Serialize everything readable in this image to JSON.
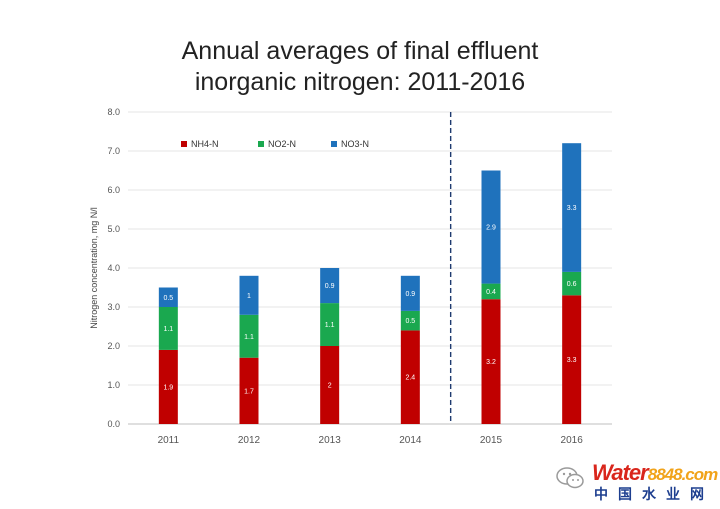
{
  "chart_data": {
    "type": "bar",
    "stacked": true,
    "title_lines": [
      "Annual averages of final effluent",
      "inorganic nitrogen: 2011-2016"
    ],
    "ylabel": "Nitrogen concentration, mg N/l",
    "xlabel": "",
    "ylim": [
      0,
      8
    ],
    "yticks": [
      "0.0",
      "1.0",
      "2.0",
      "3.0",
      "4.0",
      "5.0",
      "6.0",
      "7.0",
      "8.0"
    ],
    "grid": true,
    "legend_position": "top-left",
    "categories": [
      "2011",
      "2012",
      "2013",
      "2014",
      "2015",
      "2016"
    ],
    "divider_after_category": "2014",
    "series": [
      {
        "name": "NH4-N",
        "color": "#c00000",
        "values": [
          1.9,
          1.7,
          2.0,
          2.4,
          3.2,
          3.3
        ],
        "labels": [
          "1.9",
          "1.7",
          "2",
          "2.4",
          "3.2",
          "3.3"
        ]
      },
      {
        "name": "NO2-N",
        "color": "#1aa84f",
        "values": [
          1.1,
          1.1,
          1.1,
          0.5,
          0.4,
          0.6
        ],
        "labels": [
          "1.1",
          "1.1",
          "1.1",
          "0.5",
          "0.4",
          "0.6"
        ]
      },
      {
        "name": "NO3-N",
        "color": "#1f72bc",
        "values": [
          0.5,
          1.0,
          0.9,
          0.9,
          2.9,
          3.3
        ],
        "labels": [
          "0.5",
          "1",
          "0.9",
          "0.9",
          "2.9",
          "3.3"
        ]
      }
    ]
  },
  "watermark": {
    "brand_letters": "Water",
    "brand_number": "8848",
    "brand_suffix": ".com",
    "subtitle": "中国水业网",
    "wechat_icon": "wechat-icon"
  }
}
